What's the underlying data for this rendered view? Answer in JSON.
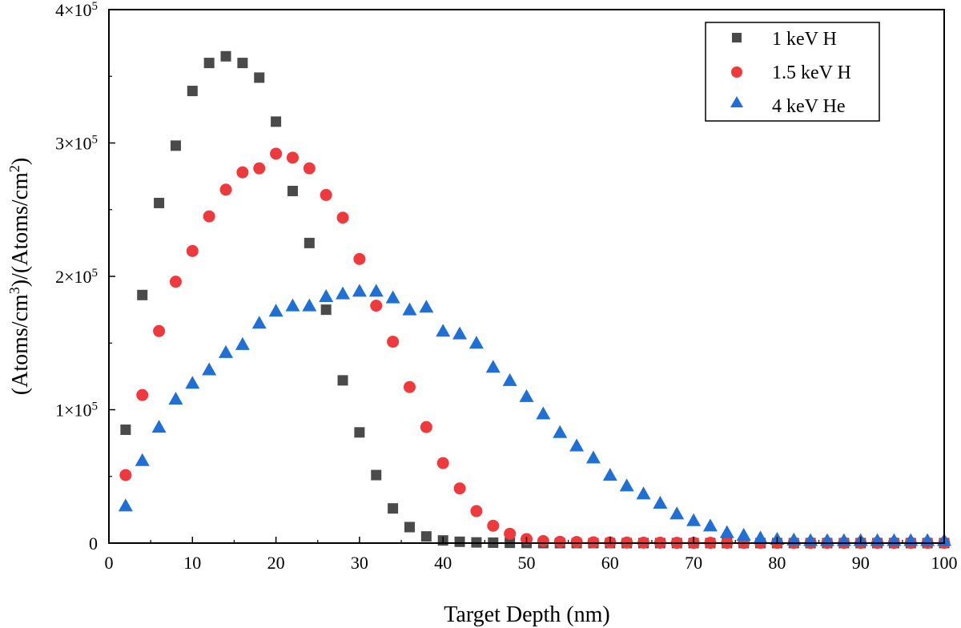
{
  "chart_data": {
    "type": "scatter",
    "title": "",
    "xlabel": "Target Depth (nm)",
    "ylabel": "(Atoms/cm3)/(Atoms/cm2)",
    "ylabel_parts": {
      "a": "(Atoms/cm",
      "b": "3",
      "c": ")/(Atoms/cm",
      "d": "2",
      "e": ")"
    },
    "xlim": [
      0,
      100
    ],
    "ylim": [
      0,
      400000
    ],
    "xticks": [
      0,
      10,
      20,
      30,
      40,
      50,
      60,
      70,
      80,
      90,
      100
    ],
    "yticks": [
      {
        "value": 0,
        "label": "0"
      },
      {
        "value": 100000,
        "mantissa": "1×10",
        "exp": "5"
      },
      {
        "value": 200000,
        "mantissa": "2×10",
        "exp": "5"
      },
      {
        "value": 300000,
        "mantissa": "3×10",
        "exp": "5"
      },
      {
        "value": 400000,
        "mantissa": "4×10",
        "exp": "5"
      }
    ],
    "legend_position": "top-right",
    "x": [
      2,
      4,
      6,
      8,
      10,
      12,
      14,
      16,
      18,
      20,
      22,
      24,
      26,
      28,
      30,
      32,
      34,
      36,
      38,
      40,
      42,
      44,
      46,
      48,
      50,
      52,
      54,
      56,
      58,
      60,
      62,
      64,
      66,
      68,
      70,
      72,
      74,
      76,
      78,
      80,
      82,
      84,
      86,
      88,
      90,
      92,
      94,
      96,
      98,
      100
    ],
    "series": [
      {
        "name": "1 keV H",
        "marker": "square",
        "color": "#4a4a4a",
        "values": [
          85000,
          186000,
          255000,
          298000,
          339000,
          360000,
          365000,
          360000,
          349000,
          316000,
          264000,
          225000,
          175000,
          122000,
          83000,
          51000,
          26000,
          12000,
          5000,
          2000,
          1000,
          500,
          300,
          200,
          100,
          0,
          0,
          0,
          0,
          0,
          0,
          0,
          0,
          0,
          0,
          0,
          0,
          0,
          0,
          0,
          0,
          0,
          0,
          0,
          0,
          0,
          0,
          0,
          0,
          0
        ]
      },
      {
        "name": "1.5 keV H",
        "marker": "circle",
        "color": "#f0393c",
        "values": [
          51000,
          111000,
          159000,
          196000,
          219000,
          245000,
          265000,
          278000,
          281000,
          292000,
          289000,
          281000,
          261000,
          244000,
          213000,
          178000,
          151000,
          117000,
          87000,
          60000,
          41000,
          24000,
          13000,
          7000,
          3000,
          1500,
          1000,
          800,
          600,
          500,
          400,
          300,
          300,
          200,
          200,
          200,
          200,
          200,
          200,
          200,
          200,
          200,
          200,
          200,
          200,
          200,
          200,
          200,
          200,
          200
        ]
      },
      {
        "name": "4 keV He",
        "marker": "triangle",
        "color": "#1f6fd6",
        "values": [
          28000,
          62000,
          87000,
          108000,
          120000,
          130000,
          143000,
          149000,
          165000,
          174000,
          178000,
          178000,
          185000,
          187000,
          189000,
          189000,
          184000,
          175000,
          177000,
          159000,
          157000,
          150000,
          132000,
          122000,
          110000,
          97000,
          83000,
          73000,
          64000,
          51000,
          43000,
          37000,
          30000,
          22000,
          17000,
          13000,
          8000,
          6000,
          4000,
          3000,
          2500,
          2000,
          2000,
          2000,
          2000,
          2000,
          2000,
          2000,
          2000,
          2000
        ]
      }
    ]
  }
}
